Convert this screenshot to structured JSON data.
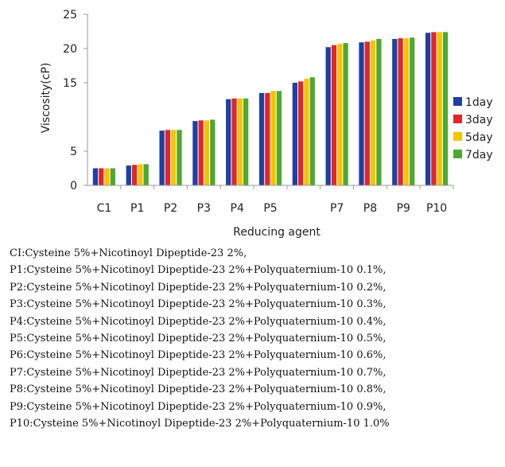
{
  "chart_data": {
    "type": "bar",
    "title": "",
    "xlabel": "Reducing agent",
    "ylabel": "Viscosity(cP)",
    "ylim": [
      0,
      25
    ],
    "yticks": [
      "0",
      "5",
      "15",
      "20",
      "25"
    ],
    "ytick_values": [
      0,
      5,
      15,
      20,
      25
    ],
    "grid": false,
    "legend_position": "right",
    "categories": [
      "C1",
      "P1",
      "P2",
      "P3",
      "P4",
      "P5",
      "",
      "P7",
      "P8",
      "P9",
      "P10"
    ],
    "series": [
      {
        "name": "1day",
        "color": "#1f3fa3",
        "values": [
          2.5,
          2.9,
          8.0,
          9.4,
          12.6,
          13.5,
          15.0,
          20.2,
          20.9,
          21.4,
          22.3
        ]
      },
      {
        "name": "3day",
        "color": "#e0262b",
        "values": [
          2.5,
          3.0,
          8.1,
          9.5,
          12.7,
          13.5,
          15.2,
          20.5,
          21.0,
          21.5,
          22.4
        ]
      },
      {
        "name": "5day",
        "color": "#f5c400",
        "values": [
          2.5,
          3.1,
          8.1,
          9.5,
          12.7,
          13.8,
          15.6,
          20.7,
          21.2,
          21.5,
          22.4
        ]
      },
      {
        "name": "7day",
        "color": "#4fa832",
        "values": [
          2.5,
          3.1,
          8.1,
          9.6,
          12.7,
          13.8,
          15.8,
          20.8,
          21.4,
          21.6,
          22.4
        ]
      }
    ]
  },
  "notes": [
    "CI:Cysteine  5%+Nicotinoyl  Dipeptide-23  2%,",
    "P1:Cysteine  5%+Nicotinoyl  Dipeptide-23  2%+Polyquaternium-10  0.1%,",
    "P2:Cysteine  5%+Nicotinoyl  Dipeptide-23  2%+Polyquaternium-10  0.2%,",
    "P3:Cysteine  5%+Nicotinoyl  Dipeptide-23  2%+Polyquaternium-10  0.3%,",
    "P4:Cysteine  5%+Nicotinoyl  Dipeptide-23  2%+Polyquaternium-10  0.4%,",
    "P5:Cysteine  5%+Nicotinoyl  Dipeptide-23  2%+Polyquaternium-10  0.5%,",
    "P6:Cysteine  5%+Nicotinoyl  Dipeptide-23  2%+Polyquaternium-10  0.6%,",
    "P7:Cysteine  5%+Nicotinoyl  Dipeptide-23  2%+Polyquaternium-10  0.7%,",
    "P8:Cysteine  5%+Nicotinoyl  Dipeptide-23  2%+Polyquaternium-10  0.8%,",
    "P9:Cysteine  5%+Nicotinoyl  Dipeptide-23  2%+Polyquaternium-10  0.9%,",
    "P10:Cysteine  5%+Nicotinoyl  Dipeptide-23  2%+Polyquaternium-10  1.0%"
  ]
}
